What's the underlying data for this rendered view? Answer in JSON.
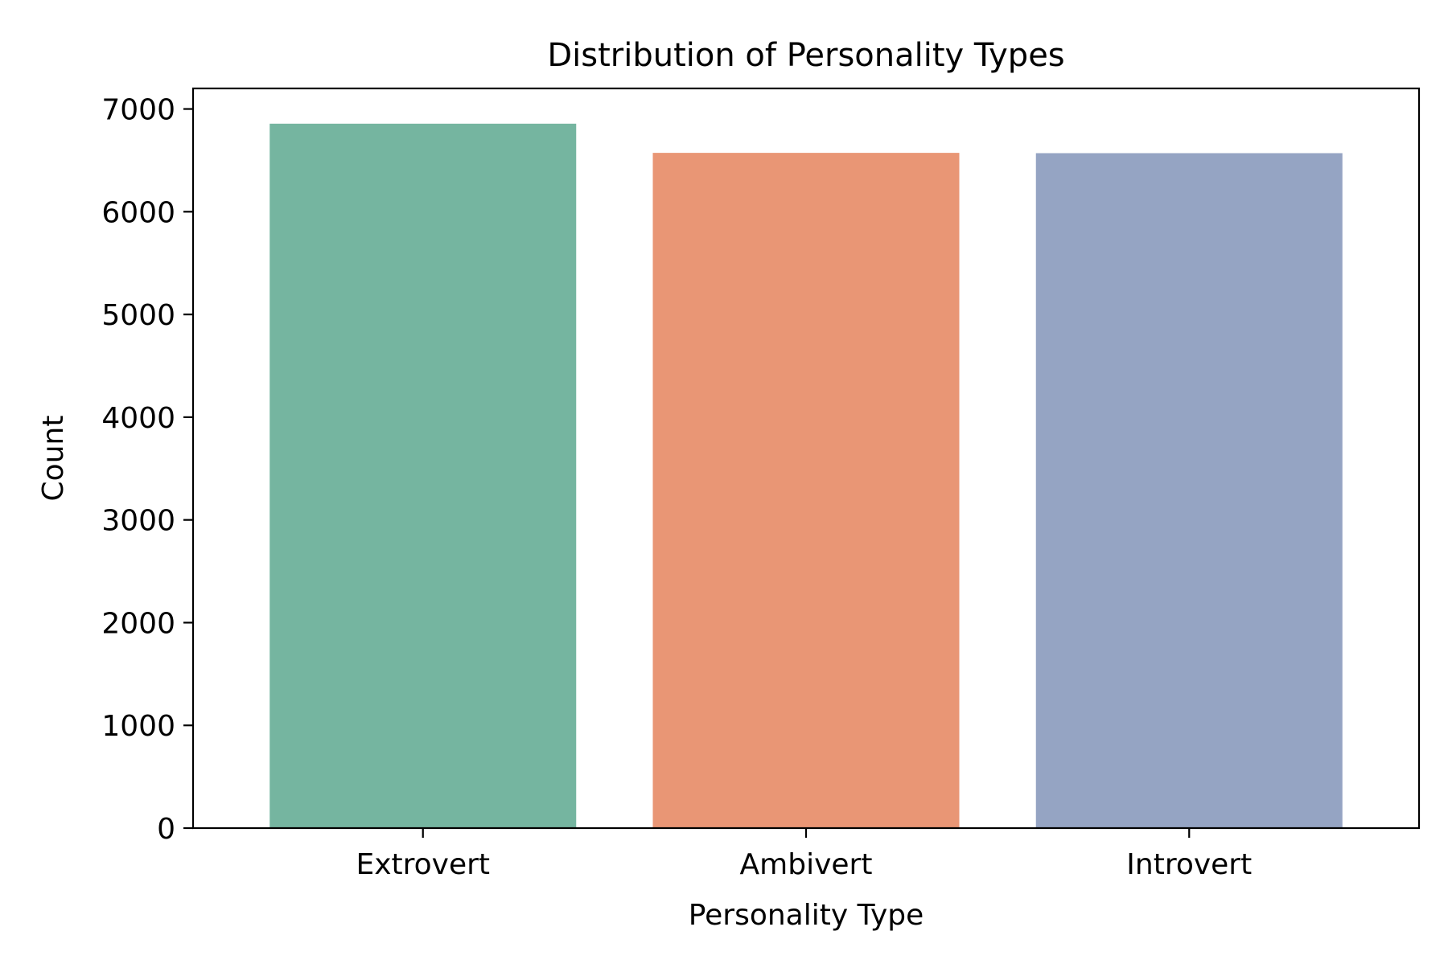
{
  "chart_data": {
    "type": "bar",
    "title": "Distribution of Personality Types",
    "xlabel": "Personality Type",
    "ylabel": "Count",
    "categories": [
      "Extrovert",
      "Ambivert",
      "Introvert"
    ],
    "values": [
      6857,
      6573,
      6570
    ],
    "colors": [
      "#75b5a0",
      "#e99675",
      "#95a4c3"
    ],
    "ylim": [
      0,
      7200
    ],
    "yticks": [
      0,
      1000,
      2000,
      3000,
      4000,
      5000,
      6000,
      7000
    ],
    "ytick_labels": [
      "0",
      "1000",
      "2000",
      "3000",
      "4000",
      "5000",
      "6000",
      "7000"
    ],
    "grid": false,
    "legend": "none"
  }
}
